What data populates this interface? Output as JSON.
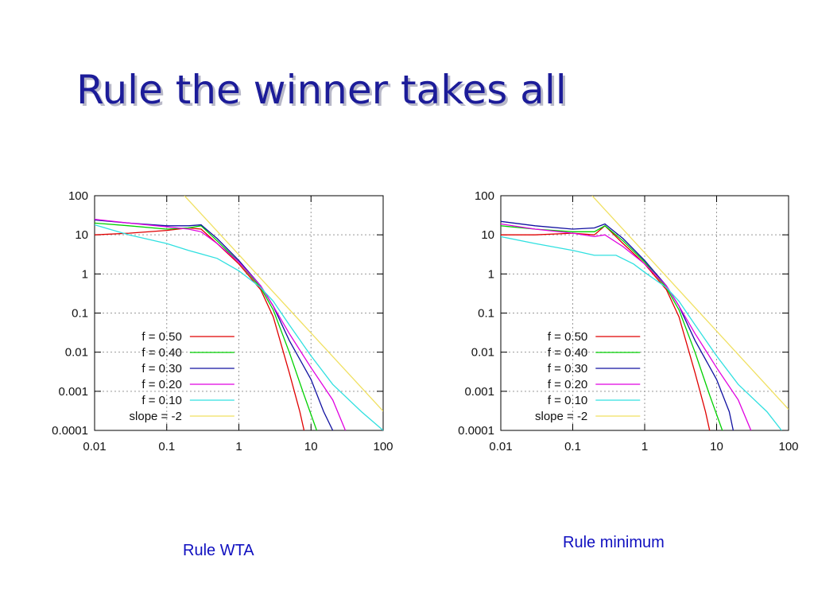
{
  "title": "Rule the winner takes all",
  "chart_data": [
    {
      "type": "line",
      "xscale": "log",
      "yscale": "log",
      "grid": true,
      "legend": "lower left",
      "xlim": [
        0.01,
        100
      ],
      "ylim": [
        0.0001,
        100
      ],
      "xticks": [
        0.01,
        0.1,
        1,
        10,
        100
      ],
      "yticks": [
        0.0001,
        0.001,
        0.01,
        0.1,
        1,
        10,
        100
      ],
      "series": [
        {
          "name": "f = 0.50",
          "color": "#e00000",
          "x": [
            0.01,
            0.03,
            0.1,
            0.2,
            0.3,
            0.5,
            1,
            2,
            3,
            5,
            7,
            8
          ],
          "values": [
            10,
            11,
            13,
            15,
            14,
            6,
            1.8,
            0.4,
            0.08,
            0.003,
            0.0003,
            0.0001
          ]
        },
        {
          "name": "f = 0.40",
          "color": "#00d000",
          "x": [
            0.01,
            0.03,
            0.1,
            0.2,
            0.3,
            0.5,
            1,
            2,
            3,
            5,
            8,
            12
          ],
          "values": [
            20,
            17,
            14,
            15,
            17,
            7,
            2,
            0.45,
            0.12,
            0.01,
            0.0008,
            0.0001
          ]
        },
        {
          "name": "f = 0.30",
          "color": "#1010a0",
          "x": [
            0.01,
            0.03,
            0.1,
            0.2,
            0.3,
            0.5,
            1,
            2,
            3,
            5,
            10,
            15,
            20
          ],
          "values": [
            24,
            20,
            17,
            17,
            18,
            8,
            2.2,
            0.5,
            0.15,
            0.02,
            0.002,
            0.0003,
            0.0001
          ]
        },
        {
          "name": "f = 0.20",
          "color": "#e000e0",
          "x": [
            0.01,
            0.03,
            0.1,
            0.2,
            0.3,
            0.5,
            1,
            2,
            3,
            5,
            10,
            20,
            30
          ],
          "values": [
            25,
            20,
            16,
            14,
            12,
            6,
            2,
            0.5,
            0.15,
            0.03,
            0.004,
            0.0006,
            0.0001
          ]
        },
        {
          "name": "f = 0.10",
          "color": "#30e0e0",
          "x": [
            0.01,
            0.03,
            0.1,
            0.2,
            0.5,
            1,
            2,
            3,
            5,
            10,
            20,
            50,
            100
          ],
          "values": [
            18,
            10,
            6,
            4,
            2.5,
            1.2,
            0.45,
            0.2,
            0.05,
            0.008,
            0.0015,
            0.0003,
            0.0001
          ]
        },
        {
          "name": "slope = -2",
          "color": "#f0e060",
          "x": [
            0.176,
            100
          ],
          "values": [
            100,
            0.00031
          ]
        }
      ]
    },
    {
      "type": "line",
      "xscale": "log",
      "yscale": "log",
      "grid": true,
      "legend": "lower left",
      "xlim": [
        0.01,
        100
      ],
      "ylim": [
        0.0001,
        100
      ],
      "xticks": [
        0.01,
        0.1,
        1,
        10,
        100
      ],
      "yticks": [
        0.0001,
        0.001,
        0.01,
        0.1,
        1,
        10,
        100
      ],
      "series": [
        {
          "name": "f = 0.50",
          "color": "#e00000",
          "x": [
            0.01,
            0.03,
            0.1,
            0.2,
            0.28,
            0.5,
            1,
            2,
            3,
            5,
            7,
            8
          ],
          "values": [
            10,
            10,
            11,
            10,
            17,
            6,
            1.8,
            0.4,
            0.08,
            0.003,
            0.0003,
            0.0001
          ]
        },
        {
          "name": "f = 0.40",
          "color": "#00d000",
          "x": [
            0.01,
            0.03,
            0.1,
            0.2,
            0.28,
            0.5,
            1,
            2,
            3,
            5,
            8,
            12
          ],
          "values": [
            17,
            14,
            12,
            12,
            17,
            7,
            2,
            0.45,
            0.12,
            0.01,
            0.0008,
            0.0001
          ]
        },
        {
          "name": "f = 0.30",
          "color": "#1010a0",
          "x": [
            0.01,
            0.03,
            0.1,
            0.2,
            0.28,
            0.5,
            1,
            2,
            3,
            5,
            10,
            15,
            17
          ],
          "values": [
            22,
            17,
            14,
            15,
            19,
            8,
            2.2,
            0.5,
            0.15,
            0.02,
            0.002,
            0.0003,
            0.0001
          ]
        },
        {
          "name": "f = 0.20",
          "color": "#e000e0",
          "x": [
            0.01,
            0.03,
            0.1,
            0.2,
            0.28,
            0.5,
            1,
            2,
            3,
            5,
            10,
            20,
            30
          ],
          "values": [
            19,
            14,
            11,
            9,
            10,
            5,
            1.8,
            0.5,
            0.15,
            0.03,
            0.004,
            0.0006,
            0.0001
          ]
        },
        {
          "name": "f = 0.10",
          "color": "#30e0e0",
          "x": [
            0.01,
            0.03,
            0.1,
            0.2,
            0.4,
            0.7,
            1,
            2,
            3,
            5,
            10,
            20,
            50,
            80
          ],
          "values": [
            9,
            6,
            4,
            3,
            3,
            1.8,
            1.1,
            0.45,
            0.2,
            0.05,
            0.008,
            0.0015,
            0.0003,
            0.0001
          ]
        },
        {
          "name": "slope = -2",
          "color": "#f0e060",
          "x": [
            0.186,
            100
          ],
          "values": [
            100,
            0.000346
          ]
        }
      ]
    }
  ],
  "captions": [
    "Rule WTA",
    "Rule minimum"
  ]
}
